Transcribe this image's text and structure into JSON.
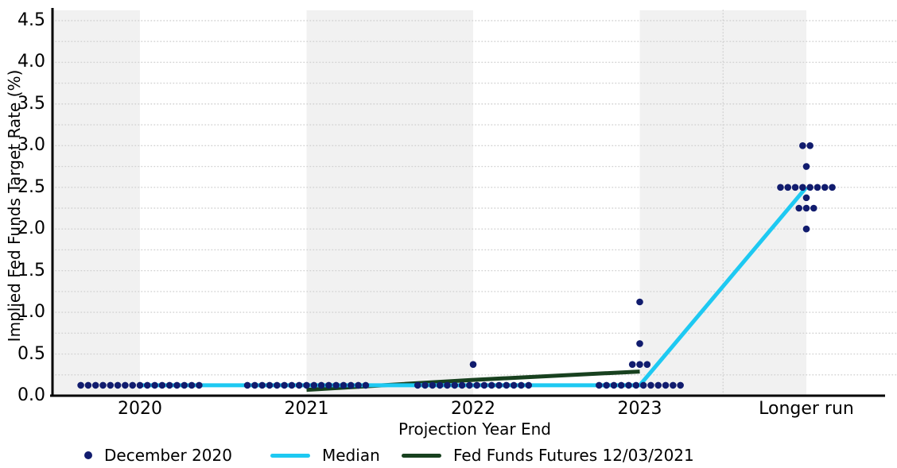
{
  "chart_data": {
    "type": "scatter",
    "title": "",
    "ylabel": "Implied Fed Funds Target Rate (%)",
    "xlabel": "Projection Year End",
    "categories": [
      "2020",
      "2021",
      "2022",
      "2023",
      "Longer run"
    ],
    "y_ticks": [
      "0.0",
      "0.5",
      "1.0",
      "1.5",
      "2.0",
      "2.5",
      "3.0",
      "3.5",
      "4.0",
      "4.5"
    ],
    "ylim": [
      0,
      4.5
    ],
    "grid_interval": 0.25,
    "grid_style": "dotted",
    "legend_position": "bottom",
    "shaded_bands": [
      [
        "plot-left",
        "2020"
      ],
      [
        "2021",
        "2022"
      ],
      [
        "2023",
        "Longer run"
      ]
    ],
    "separator_between": [
      "2023",
      "Longer run"
    ],
    "colors": {
      "dots": "#111c6e",
      "median": "#1ec9f2",
      "futures": "#18411f",
      "band": "#f1f1f1",
      "grid": "#d2d2d2",
      "axis": "#000000"
    },
    "series": [
      {
        "name": "December 2020",
        "style": "dots",
        "color_key": "dots",
        "groups": [
          {
            "category": "2020",
            "rate": 0.125,
            "count": 17
          },
          {
            "category": "2021",
            "rate": 0.125,
            "count": 17
          },
          {
            "category": "2022",
            "rate": 0.125,
            "count": 16
          },
          {
            "category": "2022",
            "rate": 0.375,
            "count": 1
          },
          {
            "category": "2023",
            "rate": 0.125,
            "count": 12
          },
          {
            "category": "2023",
            "rate": 0.375,
            "count": 3
          },
          {
            "category": "2023",
            "rate": 0.625,
            "count": 1
          },
          {
            "category": "2023",
            "rate": 1.125,
            "count": 1
          },
          {
            "category": "Longer run",
            "rate": 2.0,
            "count": 1
          },
          {
            "category": "Longer run",
            "rate": 2.25,
            "count": 3
          },
          {
            "category": "Longer run",
            "rate": 2.375,
            "count": 1
          },
          {
            "category": "Longer run",
            "rate": 2.5,
            "count": 8
          },
          {
            "category": "Longer run",
            "rate": 2.75,
            "count": 1
          },
          {
            "category": "Longer run",
            "rate": 3.0,
            "count": 2
          }
        ]
      },
      {
        "name": "Median",
        "style": "line",
        "color_key": "median",
        "points": [
          {
            "category": "2020",
            "rate": 0.125
          },
          {
            "category": "2021",
            "rate": 0.125
          },
          {
            "category": "2022",
            "rate": 0.125
          },
          {
            "category": "2023",
            "rate": 0.125
          },
          {
            "category": "Longer run",
            "rate": 2.5
          }
        ]
      },
      {
        "name": "Fed Funds Futures 12/03/2021",
        "style": "line",
        "color_key": "futures",
        "points": [
          {
            "category": "2021",
            "rate": 0.07
          },
          {
            "category": "2022",
            "rate": 0.19
          },
          {
            "category": "2023",
            "rate": 0.29
          }
        ]
      }
    ]
  }
}
